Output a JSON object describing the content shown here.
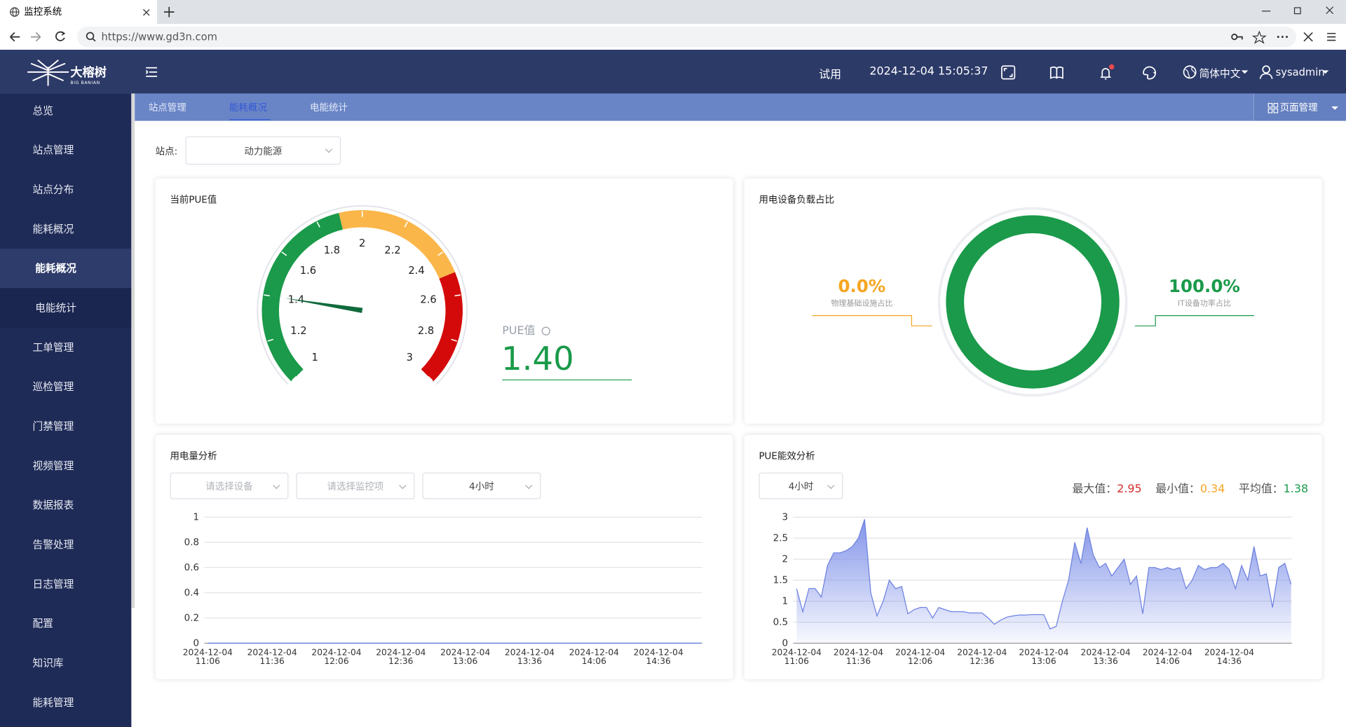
{
  "browser": {
    "tab_title": "监控系统",
    "url": "https://www.gd3n.com"
  },
  "header": {
    "logo": "大榕树",
    "logo_sub": "BIG BANIAN",
    "trial": "试用",
    "datetime": "2024-12-04 15:05:37",
    "language": "简体中文",
    "user": "sysadmin"
  },
  "sidebar": {
    "menu": [
      {
        "label": "总览"
      },
      {
        "label": "站点管理"
      },
      {
        "label": "站点分布"
      },
      {
        "label": "能耗概况",
        "arrow": "up"
      },
      {
        "label": "能耗概况",
        "sub": true,
        "active": true
      },
      {
        "label": "电能统计",
        "sub": true
      },
      {
        "label": "工单管理",
        "arrow": "down"
      },
      {
        "label": "巡检管理",
        "arrow": "down"
      },
      {
        "label": "门禁管理",
        "arrow": "down"
      },
      {
        "label": "视频管理",
        "arrow": "down"
      },
      {
        "label": "数据报表",
        "arrow": "down"
      },
      {
        "label": "告警处理"
      },
      {
        "label": "日志管理",
        "arrow": "down"
      },
      {
        "label": "配置",
        "arrow": "down"
      },
      {
        "label": "知识库",
        "arrow": "down"
      },
      {
        "label": "能耗管理",
        "arrow": "down"
      }
    ]
  },
  "tabs": {
    "items": [
      {
        "label": "站点管理"
      },
      {
        "label": "能耗概况",
        "active": true
      },
      {
        "label": "电能统计"
      }
    ],
    "page_menu": "页面管理"
  },
  "filter": {
    "label": "站点:",
    "value": "动力能源"
  },
  "chart_data": [
    {
      "type": "gauge",
      "title": "当前PUE值",
      "value_title": "PUE值",
      "range": [
        1,
        3
      ],
      "ticks": [
        1,
        1.2,
        1.4,
        1.6,
        1.8,
        2,
        2.2,
        2.4,
        2.6,
        2.8,
        3
      ],
      "bands": [
        {
          "to": 1.9,
          "color": "#1a9a4a"
        },
        {
          "to": 2.5,
          "color": "#fbb64a"
        },
        {
          "to": 3,
          "color": "#d40a0a"
        }
      ],
      "values": [
        1.4
      ],
      "value_labels": [
        "1.40"
      ],
      "color": "#1a9a4a"
    },
    {
      "type": "donut",
      "title": "用电设备负载占比",
      "categories": [
        "物理基础设施占比",
        "IT设备功率占比"
      ],
      "values": [
        0,
        100
      ],
      "value_labels": [
        "0.0%",
        "100.0%"
      ],
      "colors": [
        "#f5a623",
        "#1a9a4a"
      ]
    },
    {
      "type": "line",
      "title": "用电量分析",
      "controls": [
        "请选择设备",
        "请选择监控项",
        "4小时"
      ],
      "categories": [
        "2024-12-04 11:06",
        null,
        null,
        "2024-12-04 11:36",
        null,
        null,
        "2024-12-04 12:06",
        null,
        null,
        "2024-12-04 12:36",
        null,
        null,
        "2024-12-04 13:06",
        null,
        null,
        "2024-12-04 13:36",
        null,
        null,
        "2024-12-04 14:06",
        null,
        null,
        "2024-12-04 14:36",
        null,
        null
      ],
      "values": [
        0,
        0,
        0,
        0,
        0,
        0,
        0,
        0,
        0,
        0,
        0,
        0,
        0,
        0,
        0,
        0,
        0,
        0,
        0,
        0,
        0,
        0,
        0,
        0
      ],
      "ylim": [
        0,
        1
      ],
      "yticks": [
        0,
        0.2,
        0.4,
        0.6,
        0.8,
        1
      ],
      "grid": true,
      "color": "#5b7be0"
    },
    {
      "type": "area",
      "title": "PUE能效分析",
      "controls": [
        "4小时"
      ],
      "stats": [
        {
          "label": "最大值：",
          "value": 2.95,
          "color": "#d42d2d"
        },
        {
          "label": "最小值：",
          "value": 0.34,
          "color": "#f5a623"
        },
        {
          "label": "平均值：",
          "value": 1.38,
          "color": "#1a9a4a"
        }
      ],
      "categories": [
        "2024-12-04 11:06",
        null,
        null,
        null,
        null,
        null,
        null,
        null,
        null,
        null,
        "2024-12-04 11:36",
        null,
        null,
        null,
        null,
        null,
        null,
        null,
        null,
        null,
        "2024-12-04 12:06",
        null,
        null,
        null,
        null,
        null,
        null,
        null,
        null,
        null,
        "2024-12-04 12:36",
        null,
        null,
        null,
        null,
        null,
        null,
        null,
        null,
        null,
        "2024-12-04 13:06",
        null,
        null,
        null,
        null,
        null,
        null,
        null,
        null,
        null,
        "2024-12-04 13:36",
        null,
        null,
        null,
        null,
        null,
        null,
        null,
        null,
        null,
        "2024-12-04 14:06",
        null,
        null,
        null,
        null,
        null,
        null,
        null,
        null,
        null,
        "2024-12-04 14:36",
        null,
        null,
        null,
        null,
        null,
        null,
        null,
        null,
        null,
        null
      ],
      "values": [
        1.3,
        0.75,
        1.3,
        1.3,
        1.1,
        1.85,
        2.15,
        2.15,
        2.2,
        2.3,
        2.5,
        2.95,
        1.2,
        0.65,
        1.0,
        1.5,
        1.3,
        1.35,
        0.7,
        0.8,
        0.85,
        0.85,
        0.6,
        0.85,
        0.8,
        0.75,
        0.75,
        0.75,
        0.72,
        0.72,
        0.72,
        0.6,
        0.45,
        0.55,
        0.62,
        0.65,
        0.67,
        0.67,
        0.68,
        0.68,
        0.68,
        0.34,
        0.4,
        1.0,
        1.5,
        2.4,
        1.9,
        2.75,
        2.1,
        1.8,
        1.9,
        1.6,
        1.8,
        2.0,
        1.4,
        1.6,
        0.7,
        1.8,
        1.8,
        1.75,
        1.8,
        1.75,
        1.8,
        1.3,
        1.5,
        1.85,
        1.75,
        1.8,
        1.8,
        1.9,
        1.75,
        1.3,
        1.85,
        1.5,
        2.3,
        1.6,
        1.65,
        0.85,
        1.8,
        1.9,
        1.4
      ],
      "ylim": [
        0,
        3
      ],
      "yticks": [
        0,
        0.5,
        1,
        1.5,
        2,
        2.5,
        3
      ],
      "grid": true,
      "color": "#6d80e0"
    }
  ]
}
